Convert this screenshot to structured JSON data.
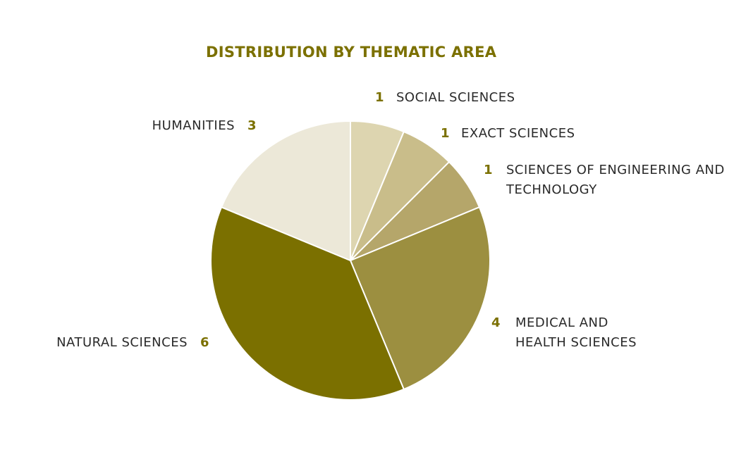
{
  "chart_data": {
    "type": "pie",
    "title": "DISTRIBUTION BY THEMATIC AREA",
    "categories": [
      "SOCIAL SCIENCES",
      "EXACT SCIENCES",
      "SCIENCES OF ENGINEERING AND TECHNOLOGY",
      "MEDICAL AND HEALTH SCIENCES",
      "NATURAL SCIENCES",
      "HUMANITIES"
    ],
    "values": [
      1,
      1,
      1,
      4,
      6,
      3
    ],
    "colors": [
      "#ddd5b0",
      "#c9bd8a",
      "#b5a66a",
      "#9c8f40",
      "#7b7000",
      "#ece8d8"
    ]
  }
}
